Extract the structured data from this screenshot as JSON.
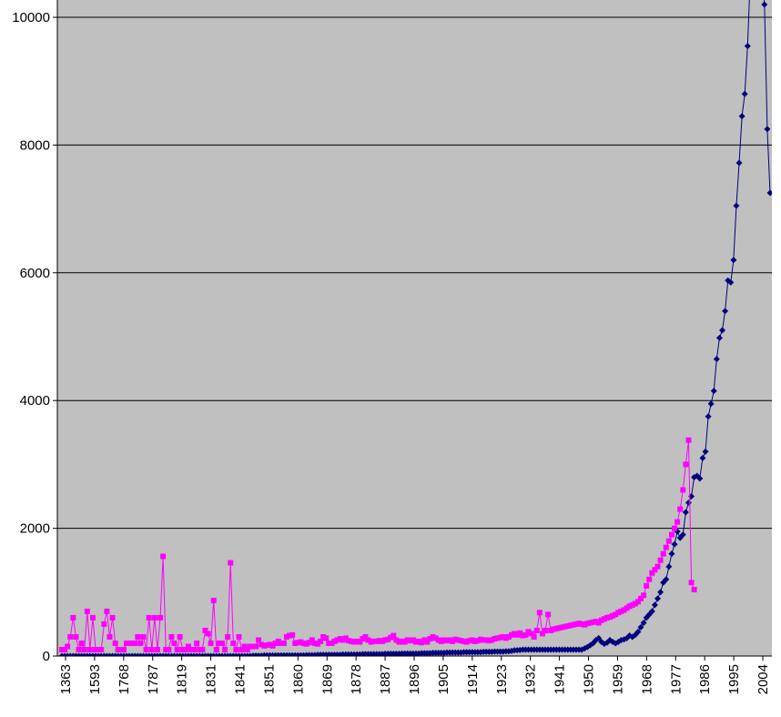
{
  "chart_data": {
    "type": "line",
    "title": "",
    "xlabel": "",
    "ylabel": "",
    "ylim": [
      0,
      10000
    ],
    "y_ticks": [
      0,
      2000,
      4000,
      6000,
      8000,
      10000
    ],
    "grid": true,
    "legend": "none",
    "plot_background": "#c0c0c0",
    "x_tick_labels": [
      "1363",
      "1593",
      "1768",
      "1787",
      "1819",
      "1831",
      "1841",
      "1851",
      "1860",
      "1869",
      "1878",
      "1887",
      "1896",
      "1905",
      "1914",
      "1923",
      "1932",
      "1941",
      "1950",
      "1959",
      "1968",
      "1977",
      "1986",
      "1995",
      "2004"
    ],
    "series": [
      {
        "color": "#000080",
        "marker": "diamond",
        "values": [
          0,
          0,
          0,
          0,
          0,
          0,
          0,
          0,
          0,
          0,
          0,
          0,
          0,
          0,
          0,
          0,
          0,
          0,
          0,
          0,
          0,
          0,
          0,
          0,
          0,
          0,
          0,
          0,
          0,
          0,
          0,
          0,
          0,
          0,
          0,
          0,
          0,
          0,
          0,
          0,
          0,
          0,
          0,
          0,
          0,
          0,
          0,
          0,
          0,
          0,
          0,
          0,
          0,
          0,
          0,
          0,
          0,
          0,
          0,
          0,
          0,
          0,
          0,
          0,
          0,
          0,
          0,
          0,
          5,
          5,
          5,
          5,
          10,
          10,
          10,
          10,
          10,
          10,
          10,
          10,
          10,
          10,
          10,
          10,
          10,
          10,
          10,
          15,
          15,
          15,
          15,
          20,
          20,
          20,
          20,
          20,
          20,
          20,
          20,
          20,
          25,
          25,
          25,
          25,
          25,
          25,
          25,
          30,
          30,
          30,
          30,
          30,
          30,
          30,
          30,
          35,
          35,
          35,
          35,
          35,
          35,
          40,
          40,
          40,
          40,
          40,
          40,
          40,
          45,
          45,
          45,
          45,
          50,
          50,
          50,
          50,
          50,
          55,
          55,
          55,
          55,
          55,
          55,
          60,
          60,
          60,
          60,
          60,
          60,
          60,
          65,
          65,
          65,
          65,
          70,
          70,
          70,
          70,
          75,
          75,
          80,
          90,
          90,
          95,
          100,
          100,
          100,
          100,
          100,
          100,
          100,
          100,
          100,
          100,
          100,
          100,
          100,
          100,
          100,
          100,
          100,
          100,
          100,
          100,
          100,
          100,
          120,
          140,
          170,
          200,
          250,
          280,
          220,
          190,
          210,
          250,
          220,
          200,
          220,
          250,
          260,
          280,
          320,
          300,
          330,
          380,
          450,
          520,
          600,
          650,
          700,
          800,
          900,
          1000,
          1150,
          1200,
          1400,
          1600,
          1750,
          1950,
          1850,
          1900,
          2250,
          2400,
          2500,
          2800,
          2820,
          2780,
          3100,
          3200,
          3750,
          3950,
          4150,
          4650,
          4980,
          5100,
          5400,
          5880,
          5850,
          6200,
          7050,
          7720,
          8450,
          8800,
          9550,
          10700,
          11000,
          11200,
          11000,
          10800,
          10200,
          8250,
          7250
        ]
      },
      {
        "color": "#ff00ff",
        "marker": "square",
        "values": [
          100,
          100,
          150,
          300,
          600,
          300,
          100,
          200,
          100,
          700,
          100,
          600,
          100,
          100,
          100,
          500,
          700,
          300,
          600,
          200,
          100,
          100,
          100,
          200,
          200,
          200,
          200,
          300,
          200,
          300,
          100,
          600,
          100,
          600,
          100,
          600,
          1560,
          100,
          100,
          300,
          200,
          100,
          300,
          100,
          100,
          150,
          100,
          100,
          200,
          100,
          100,
          400,
          350,
          200,
          870,
          100,
          200,
          200,
          100,
          300,
          1460,
          200,
          100,
          300,
          100,
          150,
          100,
          150,
          150,
          150,
          250,
          180,
          160,
          170,
          180,
          160,
          200,
          230,
          200,
          200,
          300,
          320,
          330,
          200,
          210,
          220,
          200,
          190,
          210,
          250,
          200,
          190,
          230,
          300,
          280,
          200,
          200,
          230,
          250,
          270,
          250,
          280,
          240,
          230,
          220,
          230,
          220,
          270,
          300,
          250,
          220,
          230,
          230,
          240,
          230,
          250,
          260,
          290,
          320,
          250,
          220,
          230,
          220,
          250,
          240,
          250,
          220,
          230,
          210,
          250,
          220,
          270,
          300,
          280,
          250,
          230,
          250,
          240,
          250,
          230,
          260,
          250,
          240,
          230,
          220,
          240,
          250,
          230,
          240,
          260,
          250,
          250,
          240,
          250,
          270,
          280,
          290,
          300,
          280,
          300,
          330,
          350,
          330,
          360,
          320,
          330,
          380,
          350,
          300,
          400,
          680,
          350,
          400,
          650,
          400,
          420,
          430,
          440,
          450,
          460,
          470,
          480,
          490,
          500,
          510,
          500,
          490,
          510,
          520,
          530,
          540,
          520,
          560,
          580,
          600,
          610,
          630,
          650,
          680,
          700,
          720,
          750,
          780,
          800,
          820,
          850,
          900,
          950,
          1100,
          1200,
          1300,
          1350,
          1400,
          1500,
          1600,
          1700,
          1800,
          1900,
          2000,
          2100,
          2300,
          2600,
          3000,
          3380,
          1150,
          1040
        ]
      }
    ]
  }
}
